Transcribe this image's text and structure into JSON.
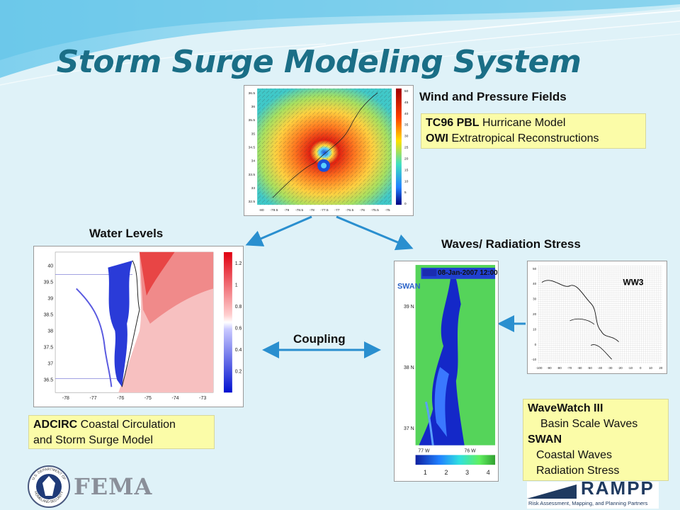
{
  "title": "Storm Surge Modeling System",
  "wind": {
    "heading": "Wind and Pressure Fields",
    "line1_bold": "TC96 PBL",
    "line1_rest": " Hurricane Model",
    "line2_bold": "OWI",
    "line2_rest": " Extratropical Reconstructions",
    "y_ticks": [
      "36.5",
      "36",
      "35.5",
      "35",
      "34.5",
      "34",
      "33.5",
      "33",
      "32.5"
    ],
    "x_ticks": [
      "-80",
      "-79.5",
      "-79",
      "-78.5",
      "-78",
      "-77.5",
      "-77",
      "-76.5",
      "-76",
      "-75.5",
      "-75"
    ],
    "cb_ticks": [
      "50",
      "45",
      "40",
      "35",
      "30",
      "25",
      "20",
      "15",
      "10",
      "5",
      "0"
    ]
  },
  "water": {
    "heading": "Water Levels",
    "y_ticks": [
      "40",
      "39.5",
      "39",
      "38.5",
      "38",
      "37.5",
      "37",
      "36.5"
    ],
    "x_ticks": [
      "-78",
      "-77",
      "-76",
      "-75",
      "-74",
      "-73"
    ],
    "cb_ticks": [
      "1.2",
      "1",
      "0.8",
      "0.6",
      "0.4",
      "0.2"
    ]
  },
  "adcirc": {
    "bold": "ADCIRC",
    "rest": " Coastal Circulation",
    "line2": "and Storm Surge Model"
  },
  "waves": {
    "heading": "Waves/ Radiation Stress",
    "swan_label": "SWAN",
    "timestamp": "08-Jan-2007 12:00",
    "y_ticks": [
      "39 N",
      "38 N",
      "37 N"
    ],
    "x_ticks": [
      "77 W",
      "76 W"
    ],
    "cb_ticks": [
      "1",
      "2",
      "3",
      "4"
    ]
  },
  "ww3": {
    "label": "WW3",
    "y_ticks": [
      "50",
      "40",
      "30",
      "20",
      "10",
      "0",
      "-10"
    ],
    "x_ticks": [
      "-100",
      "-90",
      "-80",
      "-70",
      "-60",
      "-50",
      "-40",
      "-30",
      "-20",
      "-10",
      "0",
      "10",
      "20"
    ]
  },
  "coupling": {
    "label": "Coupling"
  },
  "ww_box": {
    "line1": "WaveWatch III",
    "line2": "Basin Scale Waves",
    "line3": "SWAN",
    "line4": "Coastal Waves",
    "line5": "Radiation Stress"
  },
  "fema": {
    "text": "FEMA",
    "seal_top": "U.S. DEPARTMENT OF",
    "seal_bottom": "HOMELAND SECURITY"
  },
  "rampp": {
    "text": "RAMPP",
    "tagline": "Risk Assessment, Mapping, and Planning Partners"
  },
  "colors": {
    "title": "#1a6e86",
    "arrow": "#2a8fcf",
    "box": "#fbfca8"
  }
}
